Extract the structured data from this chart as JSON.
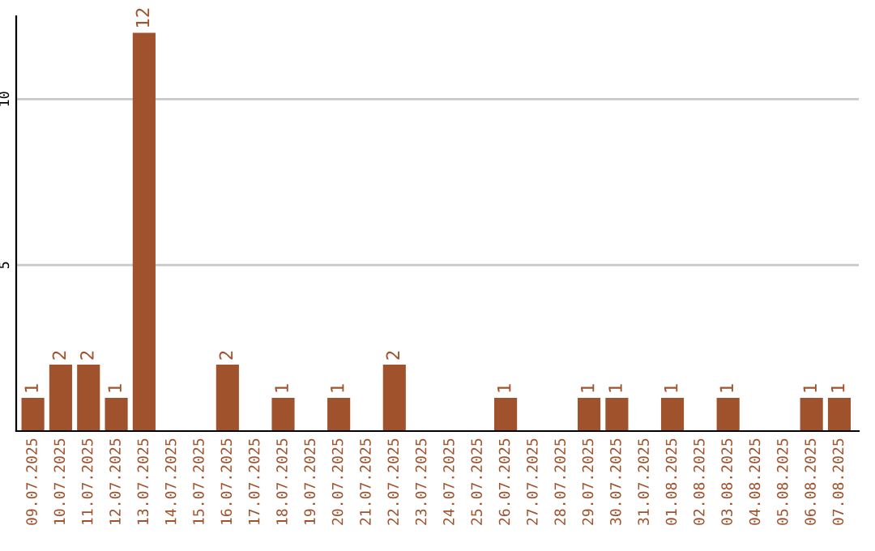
{
  "chart_data": {
    "type": "bar",
    "categories": [
      "09.07.2025",
      "10.07.2025",
      "11.07.2025",
      "12.07.2025",
      "13.07.2025",
      "14.07.2025",
      "15.07.2025",
      "16.07.2025",
      "17.07.2025",
      "18.07.2025",
      "19.07.2025",
      "20.07.2025",
      "21.07.2025",
      "22.07.2025",
      "23.07.2025",
      "24.07.2025",
      "25.07.2025",
      "26.07.2025",
      "27.07.2025",
      "28.07.2025",
      "29.07.2025",
      "30.07.2025",
      "31.07.2025",
      "01.08.2025",
      "02.08.2025",
      "03.08.2025",
      "04.08.2025",
      "05.08.2025",
      "06.08.2025",
      "07.08.2025"
    ],
    "values": [
      1,
      2,
      2,
      1,
      12,
      0,
      0,
      2,
      0,
      1,
      0,
      1,
      0,
      2,
      0,
      0,
      0,
      1,
      0,
      0,
      1,
      1,
      0,
      1,
      0,
      1,
      0,
      0,
      1,
      1
    ],
    "value_labels": [
      "1",
      "2",
      "2",
      "1",
      "12",
      null,
      null,
      "2",
      null,
      "1",
      null,
      "1",
      null,
      "2",
      null,
      null,
      null,
      "1",
      null,
      null,
      "1",
      "1",
      null,
      "1",
      null,
      "1",
      null,
      null,
      "1",
      "1"
    ],
    "color": "#a0522d",
    "ylim": [
      0,
      12.5
    ],
    "yticks": [
      5,
      10
    ],
    "grid": "y",
    "legend": false
  }
}
